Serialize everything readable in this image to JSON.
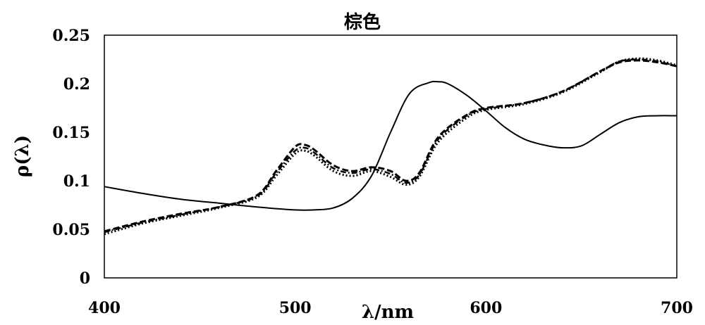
{
  "chart_data": {
    "type": "line",
    "title": "棕色",
    "xlabel": "λ/nm",
    "ylabel": "ρ(λ)",
    "xlim": [
      400,
      700
    ],
    "ylim": [
      0,
      0.25
    ],
    "xticks": [
      400,
      500,
      600,
      700
    ],
    "xtick_labels": [
      "400",
      "500",
      "600",
      "700"
    ],
    "yticks": [
      0,
      0.05,
      0.1,
      0.15,
      0.2,
      0.25
    ],
    "ytick_labels": [
      "0",
      "0.05",
      "0.1",
      "0.15",
      "0.2",
      "0.25"
    ],
    "grid": false,
    "legend": "none",
    "series": [
      {
        "style": "solid",
        "color": "#000000",
        "x": [
          400,
          420,
          440,
          460,
          480,
          500,
          510,
          520,
          530,
          540,
          550,
          560,
          570,
          575,
          580,
          590,
          600,
          610,
          620,
          630,
          640,
          650,
          660,
          670,
          680,
          690,
          700
        ],
        "y": [
          0.094,
          0.087,
          0.081,
          0.077,
          0.073,
          0.07,
          0.07,
          0.072,
          0.082,
          0.105,
          0.15,
          0.19,
          0.201,
          0.202,
          0.2,
          0.188,
          0.172,
          0.155,
          0.143,
          0.137,
          0.134,
          0.136,
          0.148,
          0.16,
          0.166,
          0.167,
          0.167
        ]
      },
      {
        "style": "dashed",
        "color": "#000000",
        "x": [
          400,
          420,
          440,
          460,
          480,
          490,
          500,
          505,
          510,
          520,
          530,
          540,
          550,
          558,
          565,
          575,
          590,
          600,
          620,
          640,
          660,
          670,
          680,
          690,
          700
        ],
        "y": [
          0.048,
          0.058,
          0.066,
          0.073,
          0.085,
          0.11,
          0.135,
          0.137,
          0.132,
          0.116,
          0.11,
          0.114,
          0.11,
          0.1,
          0.108,
          0.145,
          0.168,
          0.175,
          0.18,
          0.192,
          0.213,
          0.222,
          0.224,
          0.222,
          0.218
        ]
      },
      {
        "style": "dotted",
        "color": "#000000",
        "x": [
          400,
          420,
          440,
          460,
          480,
          490,
          500,
          505,
          510,
          520,
          530,
          540,
          550,
          558,
          565,
          575,
          590,
          600,
          620,
          640,
          660,
          670,
          680,
          690,
          700
        ],
        "y": [
          0.045,
          0.056,
          0.064,
          0.072,
          0.083,
          0.105,
          0.128,
          0.131,
          0.126,
          0.11,
          0.105,
          0.11,
          0.104,
          0.096,
          0.104,
          0.14,
          0.165,
          0.173,
          0.179,
          0.191,
          0.212,
          0.223,
          0.226,
          0.224,
          0.219
        ]
      },
      {
        "style": "dashdot",
        "color": "#000000",
        "x": [
          400,
          420,
          440,
          460,
          480,
          490,
          500,
          505,
          510,
          520,
          530,
          540,
          550,
          558,
          565,
          575,
          590,
          600,
          620,
          640,
          660,
          670,
          680,
          690,
          700
        ],
        "y": [
          0.047,
          0.057,
          0.065,
          0.073,
          0.084,
          0.108,
          0.131,
          0.134,
          0.129,
          0.113,
          0.108,
          0.112,
          0.107,
          0.098,
          0.106,
          0.143,
          0.167,
          0.174,
          0.18,
          0.192,
          0.213,
          0.223,
          0.225,
          0.223,
          0.218
        ]
      }
    ]
  }
}
